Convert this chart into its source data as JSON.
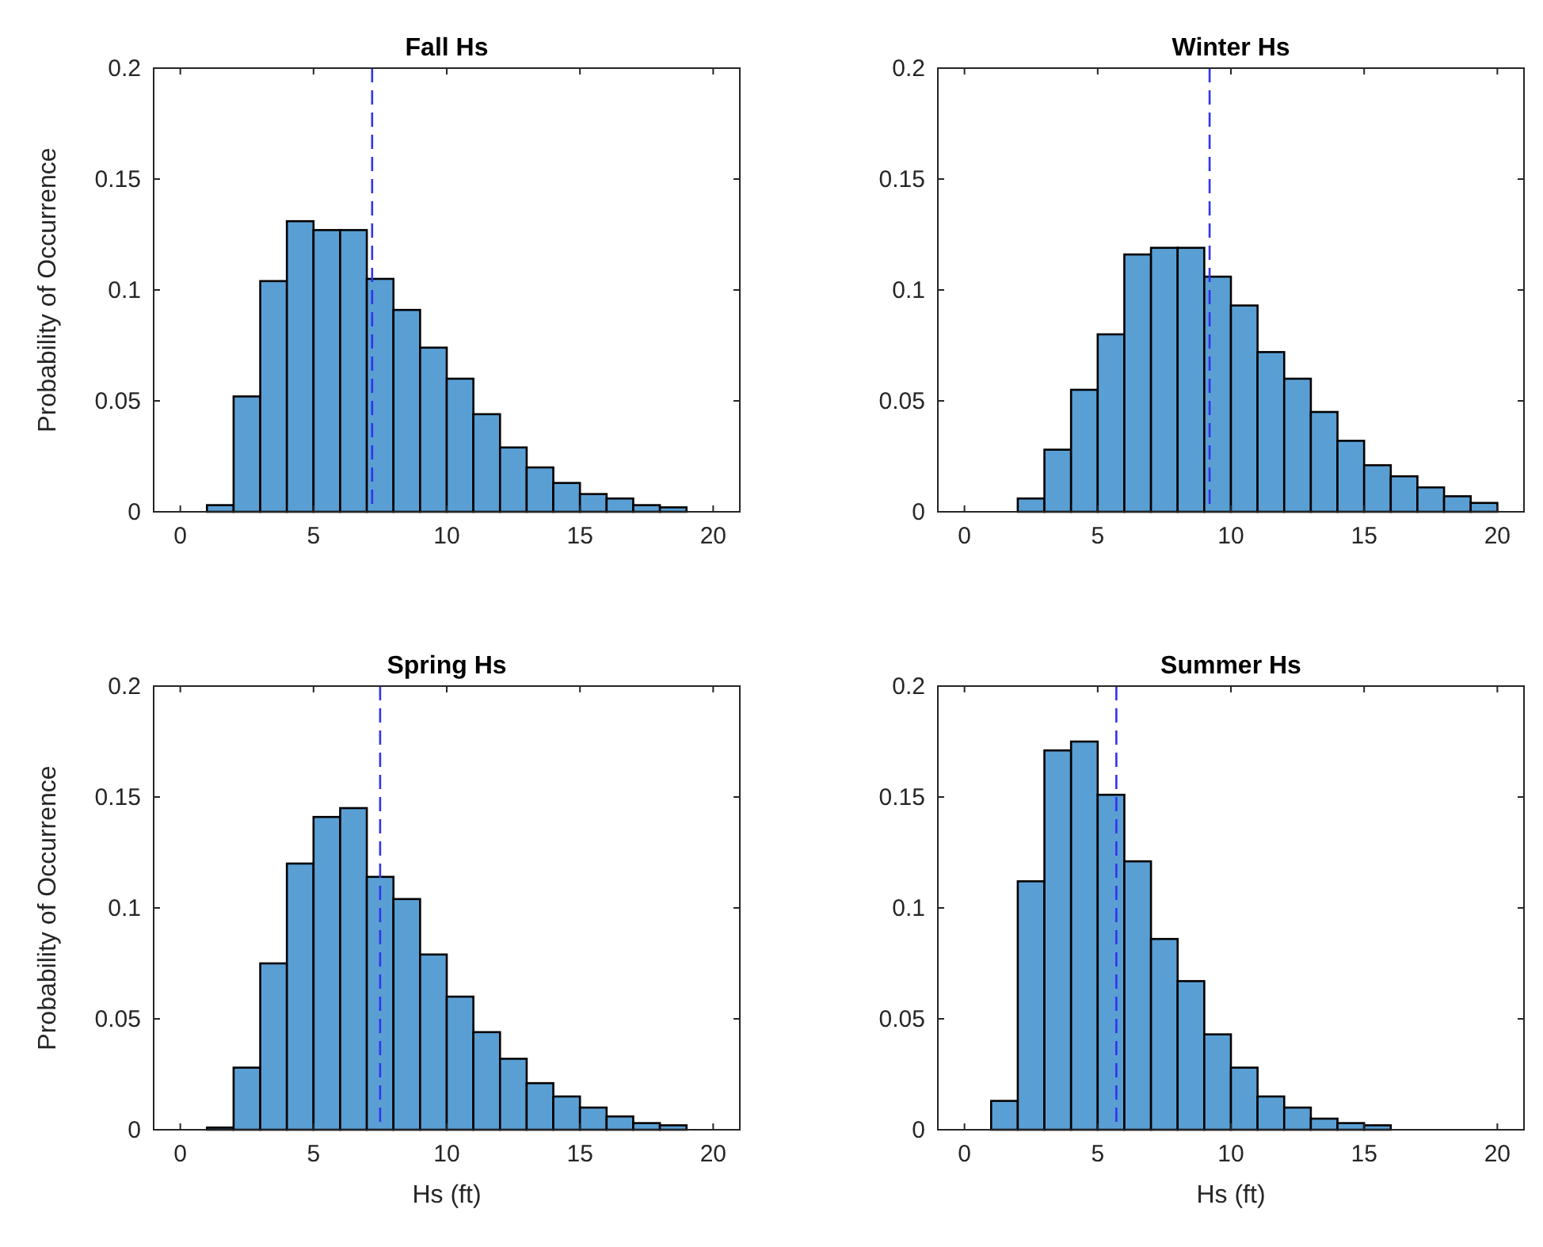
{
  "chart_data": [
    {
      "type": "histogram",
      "title": "Fall Hs",
      "ylabel": "Probability of Occurrence",
      "bins": [
        1,
        2,
        3,
        4,
        5,
        6,
        7,
        8,
        9,
        10,
        11,
        12,
        13,
        14,
        15,
        16,
        17,
        18,
        19
      ],
      "values": [
        0.003,
        0.052,
        0.104,
        0.131,
        0.127,
        0.127,
        0.105,
        0.091,
        0.074,
        0.06,
        0.044,
        0.029,
        0.02,
        0.013,
        0.008,
        0.006,
        0.003,
        0.002
      ],
      "color": "#5a9fd4",
      "xlim": [
        -1,
        21
      ],
      "ylim": [
        0,
        0.2
      ],
      "xticks": [
        0,
        5,
        10,
        15,
        20
      ],
      "yticks": [
        0,
        0.05,
        0.1,
        0.15,
        0.2
      ],
      "ref_lines": [
        {
          "axis": "x",
          "value": 7.2,
          "color": "#3333ee",
          "line_style": "dashed"
        }
      ]
    },
    {
      "type": "histogram",
      "title": "Winter Hs",
      "bins": [
        2,
        3,
        4,
        5,
        6,
        7,
        8,
        9,
        10,
        11,
        12,
        13,
        14,
        15,
        16,
        17,
        18,
        19,
        20
      ],
      "values": [
        0.006,
        0.028,
        0.055,
        0.08,
        0.116,
        0.119,
        0.119,
        0.106,
        0.093,
        0.072,
        0.06,
        0.045,
        0.032,
        0.021,
        0.016,
        0.011,
        0.007,
        0.004
      ],
      "color": "#5a9fd4",
      "xlim": [
        -1,
        21
      ],
      "ylim": [
        0,
        0.2
      ],
      "xticks": [
        0,
        5,
        10,
        15,
        20
      ],
      "yticks": [
        0,
        0.05,
        0.1,
        0.15,
        0.2
      ],
      "ref_lines": [
        {
          "axis": "x",
          "value": 9.2,
          "color": "#3333ee",
          "line_style": "dashed"
        }
      ]
    },
    {
      "type": "histogram",
      "title": "Spring Hs",
      "xlabel": "Hs (ft)",
      "ylabel": "Probability of Occurrence",
      "bins": [
        1,
        2,
        3,
        4,
        5,
        6,
        7,
        8,
        9,
        10,
        11,
        12,
        13,
        14,
        15,
        16,
        17,
        18,
        19
      ],
      "values": [
        0.001,
        0.028,
        0.075,
        0.12,
        0.141,
        0.145,
        0.114,
        0.104,
        0.079,
        0.06,
        0.044,
        0.032,
        0.021,
        0.015,
        0.01,
        0.006,
        0.003,
        0.002
      ],
      "color": "#5a9fd4",
      "xlim": [
        -1,
        21
      ],
      "ylim": [
        0,
        0.2
      ],
      "xticks": [
        0,
        5,
        10,
        15,
        20
      ],
      "yticks": [
        0,
        0.05,
        0.1,
        0.15,
        0.2
      ],
      "ref_lines": [
        {
          "axis": "x",
          "value": 7.5,
          "color": "#3333ee",
          "line_style": "dashed"
        }
      ]
    },
    {
      "type": "histogram",
      "title": "Summer Hs",
      "xlabel": "Hs (ft)",
      "bins": [
        1,
        2,
        3,
        4,
        5,
        6,
        7,
        8,
        9,
        10,
        11,
        12,
        13,
        14,
        15,
        16
      ],
      "values": [
        0.013,
        0.112,
        0.171,
        0.175,
        0.151,
        0.121,
        0.086,
        0.067,
        0.043,
        0.028,
        0.015,
        0.01,
        0.005,
        0.003,
        0.002
      ],
      "color": "#5a9fd4",
      "xlim": [
        -1,
        21
      ],
      "ylim": [
        0,
        0.2
      ],
      "xticks": [
        0,
        5,
        10,
        15,
        20
      ],
      "yticks": [
        0,
        0.05,
        0.1,
        0.15,
        0.2
      ],
      "ref_lines": [
        {
          "axis": "x",
          "value": 5.7,
          "color": "#3333ee",
          "line_style": "dashed"
        }
      ]
    }
  ]
}
